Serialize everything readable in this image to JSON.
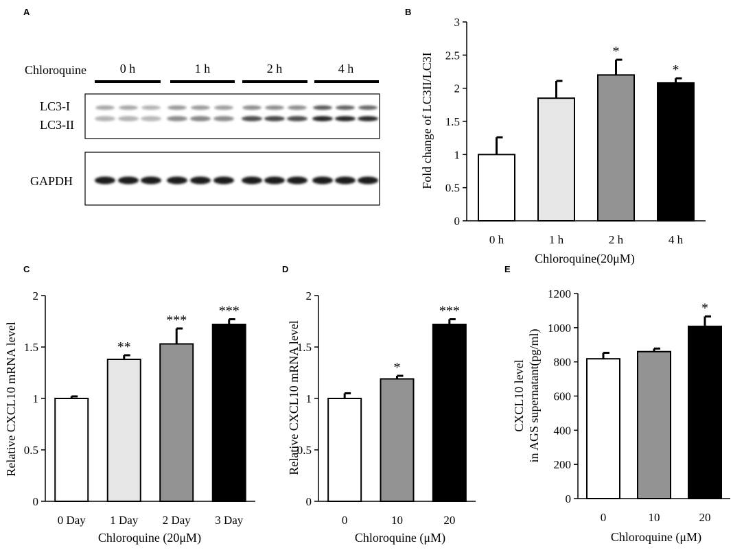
{
  "figure": {
    "panel_letters": [
      "A",
      "B",
      "C",
      "D",
      "E"
    ]
  },
  "blot": {
    "treatment_label": "Chloroquine",
    "timepoints": [
      "0 h",
      "1 h",
      "2 h",
      "4 h"
    ],
    "upper_labels": [
      "LC3-I",
      "LC3-II"
    ],
    "lower_label": "GAPDH"
  },
  "chart_data": [
    {
      "panel": "B",
      "type": "bar",
      "categories": [
        "0 h",
        "1 h",
        "2 h",
        "4 h"
      ],
      "values": [
        1.0,
        1.85,
        2.2,
        2.08
      ],
      "errors": [
        0.26,
        0.26,
        0.23,
        0.07
      ],
      "significance": [
        "",
        "",
        "*",
        "*"
      ],
      "colors": [
        "#ffffff",
        "#e6e6e6",
        "#939393",
        "#000000"
      ],
      "title": "",
      "xlabel": "Chloroquine(20μM)",
      "ylabel": "Fold change of LC3II/LC3I",
      "ylim": [
        0,
        3
      ],
      "yticks": [
        "0",
        "0.5",
        "1",
        "1.5",
        "2",
        "2.5",
        "3"
      ]
    },
    {
      "panel": "C",
      "type": "bar",
      "categories": [
        "0 Day",
        "1 Day",
        "2 Day",
        "3 Day"
      ],
      "values": [
        1.0,
        1.38,
        1.53,
        1.72
      ],
      "errors": [
        0.02,
        0.04,
        0.15,
        0.05
      ],
      "significance": [
        "",
        "**",
        "***",
        "***"
      ],
      "colors": [
        "#ffffff",
        "#e6e6e6",
        "#939393",
        "#000000"
      ],
      "title": "",
      "xlabel": "Chloroquine (20μM)",
      "ylabel": "Relative CXCL10 mRNA level",
      "ylim": [
        0,
        2
      ],
      "yticks": [
        "0",
        "0.5",
        "1",
        "1.5",
        "2"
      ]
    },
    {
      "panel": "D",
      "type": "bar",
      "categories": [
        "0",
        "10",
        "20"
      ],
      "values": [
        1.0,
        1.19,
        1.72
      ],
      "errors": [
        0.05,
        0.03,
        0.05
      ],
      "significance": [
        "",
        "*",
        "***"
      ],
      "colors": [
        "#ffffff",
        "#939393",
        "#000000"
      ],
      "title": "",
      "xlabel": "Chloroquine (μM)",
      "ylabel": "Relative CXCL10 mRNA level",
      "ylim": [
        0,
        2
      ],
      "yticks": [
        "0",
        "0.5",
        "1",
        "1.5",
        "2"
      ]
    },
    {
      "panel": "E",
      "type": "bar",
      "categories": [
        "0",
        "10",
        "20"
      ],
      "values": [
        818,
        860,
        1008
      ],
      "errors": [
        35,
        18,
        58
      ],
      "significance": [
        "",
        "",
        "*"
      ],
      "colors": [
        "#ffffff",
        "#939393",
        "#000000"
      ],
      "title": "",
      "xlabel": "Chloroquine (μM)",
      "ylabel": "CXCL10 level",
      "ylabel2": "in AGS supernatant(pg/ml)",
      "ylim": [
        0,
        1200
      ],
      "yticks": [
        "0",
        "200",
        "400",
        "600",
        "800",
        "1000",
        "1200"
      ]
    }
  ]
}
